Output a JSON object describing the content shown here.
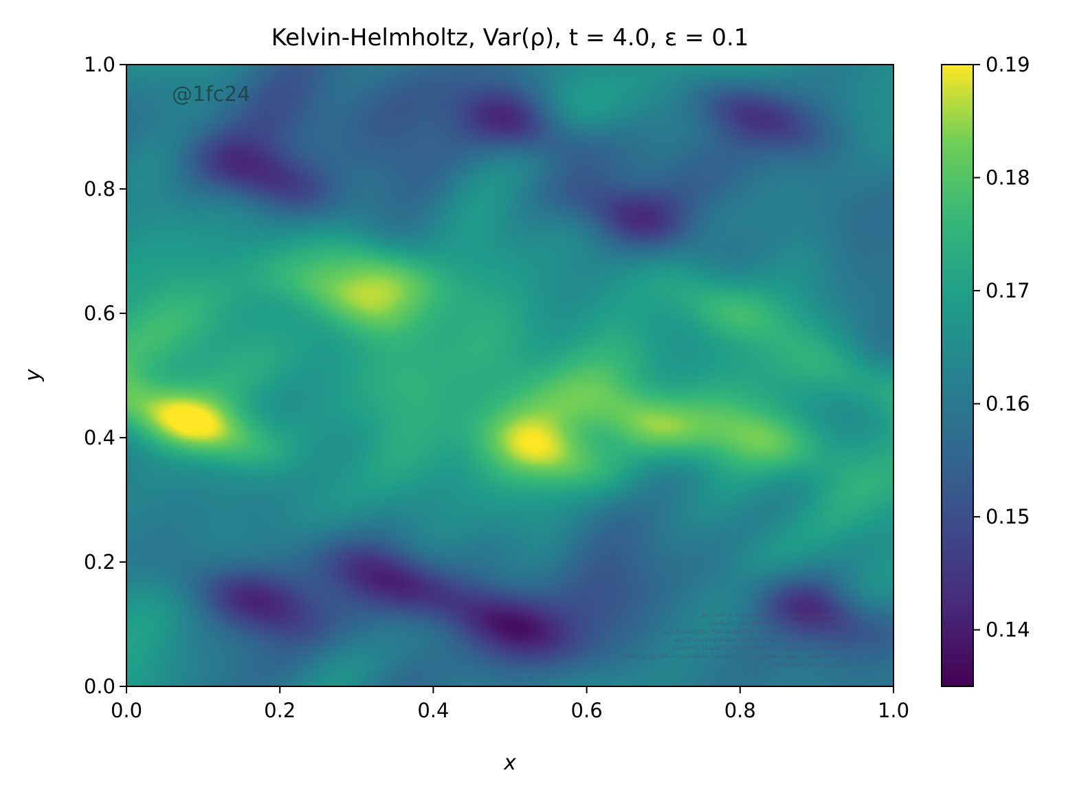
{
  "chart_data": {
    "type": "heatmap",
    "title": "Kelvin-Helmholtz, Var(ρ), t = 4.0, ε = 0.1",
    "xlabel": "x",
    "ylabel": "y",
    "xlim": [
      0.0,
      1.0
    ],
    "ylim": [
      0.0,
      1.0
    ],
    "x_ticks": [
      "0.0",
      "0.2",
      "0.4",
      "0.6",
      "0.8",
      "1.0"
    ],
    "y_ticks": [
      "0.0",
      "0.2",
      "0.4",
      "0.6",
      "0.8",
      "1.0"
    ],
    "colormap": "viridis",
    "colorbar": {
      "range": [
        0.135,
        0.19
      ],
      "ticks": [
        "0.14",
        "0.15",
        "0.16",
        "0.17",
        "0.18",
        "0.19"
      ]
    },
    "grid": false,
    "field_features": [
      {
        "x": 0.28,
        "y": 0.63,
        "value": 0.189
      },
      {
        "x": 0.33,
        "y": 0.67,
        "value": 0.186
      },
      {
        "x": 0.12,
        "y": 0.41,
        "value": 0.185
      },
      {
        "x": 0.04,
        "y": 0.44,
        "value": 0.183
      },
      {
        "x": 0.56,
        "y": 0.37,
        "value": 0.183
      },
      {
        "x": 0.69,
        "y": 0.42,
        "value": 0.184
      },
      {
        "x": 0.83,
        "y": 0.4,
        "value": 0.183
      },
      {
        "x": 0.78,
        "y": 0.61,
        "value": 0.181
      },
      {
        "x": 0.97,
        "y": 0.49,
        "value": 0.181
      },
      {
        "x": 0.18,
        "y": 0.82,
        "value": 0.141
      },
      {
        "x": 0.52,
        "y": 0.9,
        "value": 0.14
      },
      {
        "x": 0.65,
        "y": 0.76,
        "value": 0.142
      },
      {
        "x": 0.82,
        "y": 0.92,
        "value": 0.141
      },
      {
        "x": 0.35,
        "y": 0.17,
        "value": 0.141
      },
      {
        "x": 0.16,
        "y": 0.14,
        "value": 0.142
      },
      {
        "x": 0.5,
        "y": 0.1,
        "value": 0.142
      },
      {
        "x": 0.9,
        "y": 0.12,
        "value": 0.141
      }
    ],
    "watermark": "@1fc24",
    "credits": [
      "By Ulrik S. Fjordholm@UiO <ulriksf@gmail.com>",
      "and Kjetil Lye@ETHZ <kjetil.o.lye@gmail.com>",
      "and Siddhartha Mishra@ETHZ <smishra@sam.math.ethz.ch>",
      "and Franziska Weber@CMU <franzisw@andrew.cmu.edu>",
      "Commit: 1fc24d7120150e6c6cb1ac56b87060c023be66a1",
      "Repo: git@github.com:kjetil-lye/statistical_systems_paper_experiments.git",
      "Hostname: eu-login-08-ng"
    ]
  }
}
